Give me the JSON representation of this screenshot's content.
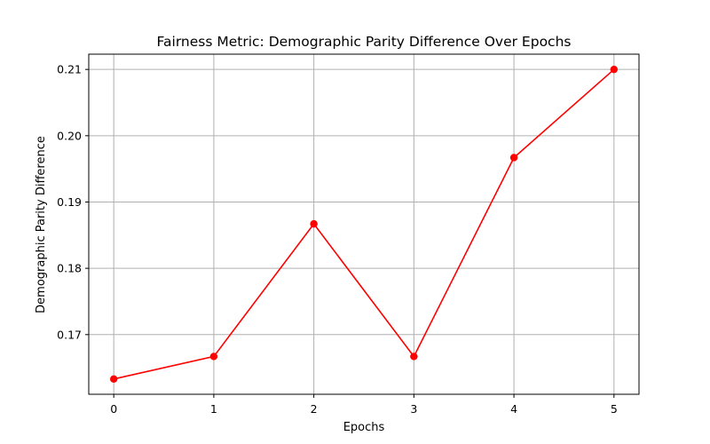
{
  "chart_data": {
    "type": "line",
    "title": "Fairness Metric: Demographic Parity Difference Over Epochs",
    "xlabel": "Epochs",
    "ylabel": "Demographic Parity Difference",
    "x": [
      0,
      1,
      2,
      3,
      4,
      5
    ],
    "series": [
      {
        "values": [
          0.1633,
          0.1667,
          0.1867,
          0.1667,
          0.1967,
          0.21
        ],
        "color": "#ff0000",
        "marker": "circle"
      }
    ],
    "xticks": [
      "0",
      "1",
      "2",
      "3",
      "4",
      "5"
    ],
    "yticks": [
      0.17,
      0.18,
      0.19,
      0.2,
      0.21
    ],
    "ytick_labels": [
      "0.17",
      "0.18",
      "0.19",
      "0.20",
      "0.21"
    ],
    "xlim": [
      -0.25,
      5.25
    ],
    "ylim": [
      0.161,
      0.2123
    ],
    "grid": true
  }
}
